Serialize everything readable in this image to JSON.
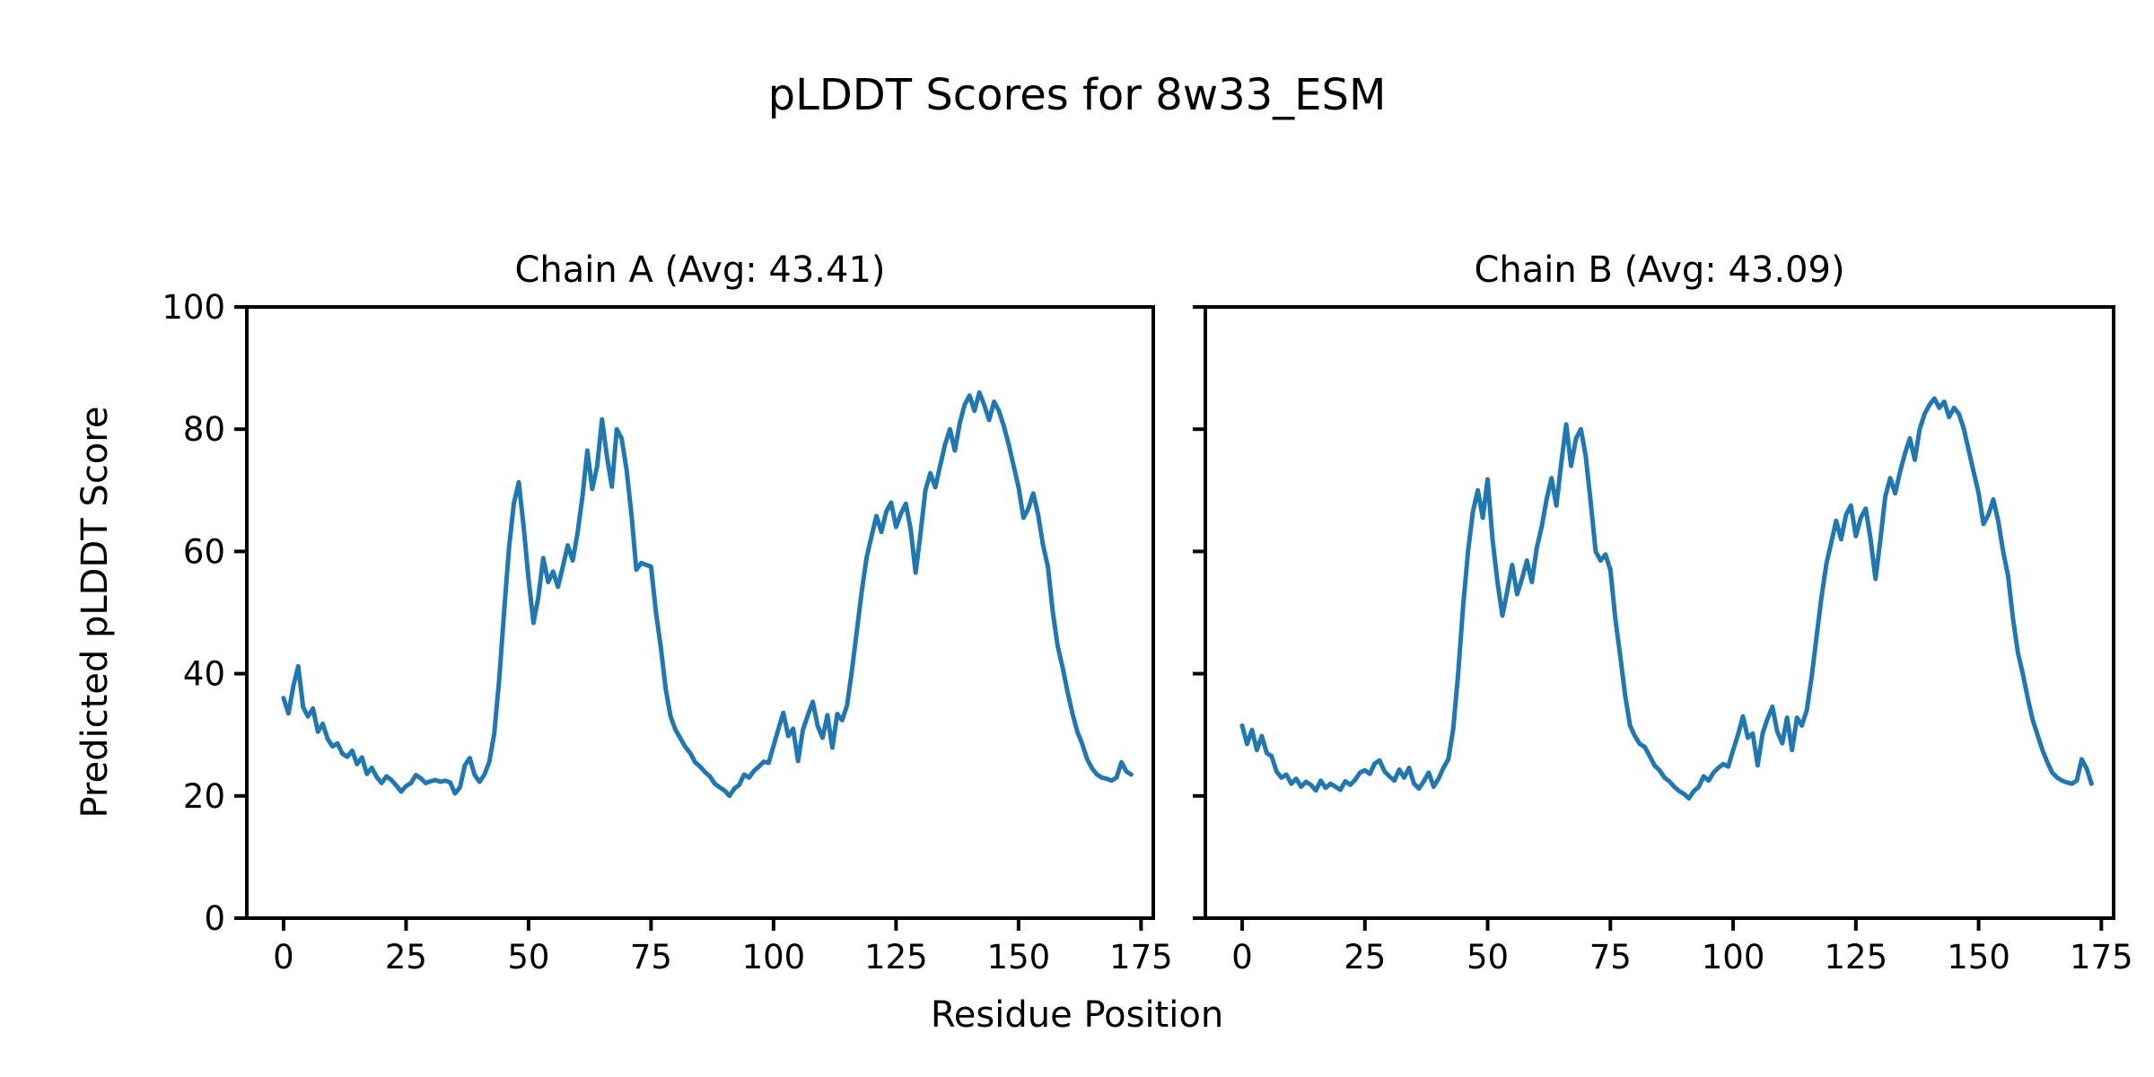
{
  "figure": {
    "title": "pLDDT Scores for 8w33_ESM",
    "xlabel": "Residue Position",
    "ylabel": "Predicted pLDDT Score",
    "background": "#ffffff",
    "text_color": "#000000",
    "line_color": "#1f77b4"
  },
  "chart_data": [
    {
      "type": "line",
      "title": "Chain A (Avg: 43.41)",
      "avg": 43.41,
      "xlabel": "Residue Position",
      "ylabel": "Predicted pLDDT Score",
      "xlim": [
        -7.5,
        177.5
      ],
      "ylim": [
        0,
        100
      ],
      "xticks": [
        0,
        25,
        50,
        75,
        100,
        125,
        150,
        175
      ],
      "yticks": [
        0,
        20,
        40,
        60,
        80,
        100
      ],
      "x_start": 0,
      "x_step": 1,
      "grid": false,
      "legend": "none",
      "series": [
        {
          "name": "Chain A pLDDT",
          "color": "#1f77b4",
          "values": [
            36.0,
            33.5,
            38.0,
            41.2,
            34.5,
            33.0,
            34.3,
            30.5,
            31.8,
            29.3,
            28.1,
            28.6,
            26.9,
            26.4,
            27.4,
            25.2,
            26.3,
            23.6,
            24.6,
            23.1,
            22.1,
            23.2,
            22.6,
            21.7,
            20.7,
            21.6,
            22.1,
            23.4,
            22.9,
            22.1,
            22.4,
            22.6,
            22.3,
            22.5,
            22.2,
            20.4,
            21.4,
            25.0,
            26.2,
            23.4,
            22.3,
            23.5,
            25.6,
            30.2,
            39.0,
            50.0,
            60.5,
            67.8,
            71.3,
            64.0,
            55.5,
            48.3,
            52.5,
            58.9,
            55.0,
            56.7,
            54.2,
            57.5,
            61.0,
            58.5,
            63.0,
            69.0,
            76.5,
            70.2,
            74.0,
            81.6,
            75.5,
            70.6,
            80.0,
            78.5,
            73.4,
            66.0,
            57.0,
            58.1,
            57.8,
            57.5,
            50.0,
            44.3,
            37.4,
            33.0,
            30.8,
            29.4,
            28.0,
            27.0,
            25.5,
            24.8,
            23.9,
            23.2,
            22.0,
            21.4,
            20.9,
            20.0,
            21.2,
            21.8,
            23.5,
            23.0,
            24.1,
            24.8,
            25.6,
            25.4,
            28.2,
            31.0,
            33.6,
            29.8,
            31.0,
            25.7,
            30.8,
            33.2,
            35.4,
            31.5,
            29.5,
            33.2,
            27.9,
            33.4,
            32.4,
            34.8,
            40.5,
            47.0,
            53.5,
            59.0,
            62.5,
            65.8,
            63.2,
            66.5,
            68.0,
            64.0,
            66.2,
            67.8,
            63.5,
            56.5,
            63.0,
            70.0,
            72.8,
            70.5,
            74.0,
            77.5,
            80.0,
            76.5,
            81.0,
            84.0,
            85.5,
            83.0,
            86.0,
            84.0,
            81.5,
            84.5,
            83.0,
            80.5,
            77.5,
            74.0,
            70.5,
            65.5,
            67.0,
            69.5,
            66.0,
            61.0,
            57.5,
            50.0,
            44.5,
            41.0,
            37.0,
            33.5,
            30.5,
            28.5,
            26.0,
            24.5,
            23.5,
            23.0,
            22.8,
            22.5,
            23.0,
            25.5,
            24.0,
            23.5
          ]
        }
      ]
    },
    {
      "type": "line",
      "title": "Chain B (Avg: 43.09)",
      "avg": 43.09,
      "xlabel": "Residue Position",
      "ylabel": "Predicted pLDDT Score",
      "xlim": [
        -7.5,
        177.5
      ],
      "ylim": [
        0,
        100
      ],
      "xticks": [
        0,
        25,
        50,
        75,
        100,
        125,
        150,
        175
      ],
      "yticks": [
        0,
        20,
        40,
        60,
        80,
        100
      ],
      "x_start": 0,
      "x_step": 1,
      "grid": false,
      "legend": "none",
      "series": [
        {
          "name": "Chain B pLDDT",
          "color": "#1f77b4",
          "values": [
            31.5,
            28.5,
            30.8,
            27.5,
            29.8,
            27.0,
            26.5,
            24.0,
            23.0,
            23.5,
            22.0,
            22.8,
            21.5,
            22.3,
            21.8,
            20.9,
            22.5,
            21.3,
            22.0,
            21.5,
            21.0,
            22.4,
            21.8,
            22.6,
            23.8,
            24.2,
            23.6,
            25.3,
            25.8,
            24.0,
            23.2,
            22.5,
            24.3,
            23.0,
            24.6,
            22.0,
            21.2,
            22.4,
            23.8,
            21.5,
            22.8,
            24.6,
            26.0,
            31.0,
            40.0,
            51.0,
            60.0,
            66.5,
            70.0,
            65.5,
            71.8,
            62.0,
            55.0,
            49.5,
            53.5,
            57.8,
            53.0,
            55.5,
            58.5,
            55.0,
            60.5,
            64.0,
            68.5,
            72.0,
            67.5,
            74.5,
            80.8,
            74.0,
            78.5,
            80.0,
            75.5,
            68.0,
            60.0,
            58.5,
            59.5,
            57.0,
            49.0,
            43.0,
            36.5,
            31.5,
            29.8,
            28.5,
            28.0,
            26.5,
            25.0,
            24.2,
            23.0,
            22.4,
            21.5,
            20.8,
            20.3,
            19.6,
            20.8,
            21.5,
            23.2,
            22.5,
            23.8,
            24.6,
            25.2,
            24.8,
            27.5,
            30.0,
            33.0,
            29.5,
            30.2,
            25.0,
            30.2,
            32.6,
            34.6,
            30.5,
            28.6,
            32.8,
            27.5,
            32.8,
            31.5,
            34.0,
            39.5,
            46.0,
            52.5,
            58.0,
            61.5,
            65.0,
            62.0,
            66.0,
            67.5,
            62.5,
            65.5,
            67.0,
            62.0,
            55.5,
            62.0,
            69.0,
            72.0,
            69.5,
            73.0,
            76.0,
            78.5,
            75.0,
            80.0,
            82.5,
            84.0,
            85.0,
            83.5,
            84.5,
            82.0,
            83.5,
            82.5,
            80.0,
            76.5,
            73.0,
            69.5,
            64.5,
            66.0,
            68.5,
            65.0,
            60.0,
            56.0,
            49.0,
            43.5,
            40.0,
            36.0,
            32.5,
            30.0,
            27.5,
            25.5,
            23.8,
            23.0,
            22.5,
            22.2,
            22.0,
            22.5,
            26.0,
            24.5,
            22.0
          ]
        }
      ]
    }
  ]
}
